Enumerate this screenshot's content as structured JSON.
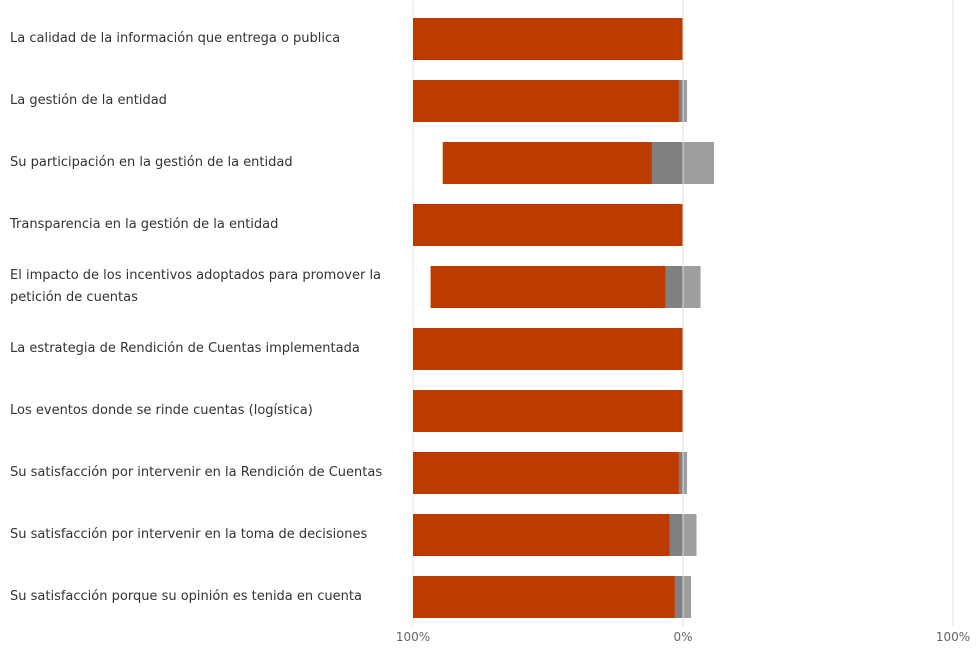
{
  "chart_data": {
    "type": "bar",
    "orientation": "horizontal",
    "stacked": "diverging",
    "categories": [
      "La calidad de la información que entrega o publica",
      "La gestión de la entidad",
      "Su participación en la gestión de la entidad",
      "Transparencia en la gestión de la entidad",
      "El impacto de los incentivos adoptados para promover la petición de cuentas",
      "La estrategia de Rendición de Cuentas implementada",
      "Los eventos donde se rinde cuentas (logística)",
      "Su satisfacción por intervenir en la Rendición de Cuentas",
      "Su satisfacción por intervenir en la toma de decisiones",
      "Su satisfacción porque su opinión es tenida en cuenta"
    ],
    "series": [
      {
        "values": [
          100,
          98.5,
          77.5,
          100,
          87,
          100,
          100,
          98.5,
          95,
          97
        ],
        "color": "#BD3A00",
        "side": "left"
      },
      {
        "values": [
          0,
          1.5,
          11.5,
          0,
          6.5,
          0,
          0,
          1.5,
          5,
          3
        ],
        "color": "#808080",
        "side": "left"
      },
      {
        "values": [
          0,
          1.5,
          11.5,
          0,
          6.5,
          0,
          0,
          1.5,
          5,
          3
        ],
        "color": "#9E9E9E",
        "side": "right"
      }
    ],
    "xaxis": {
      "ticks": [
        "100%",
        "0%",
        "100%"
      ],
      "range": [
        -100,
        100
      ]
    },
    "grid": true,
    "legend": "none"
  }
}
